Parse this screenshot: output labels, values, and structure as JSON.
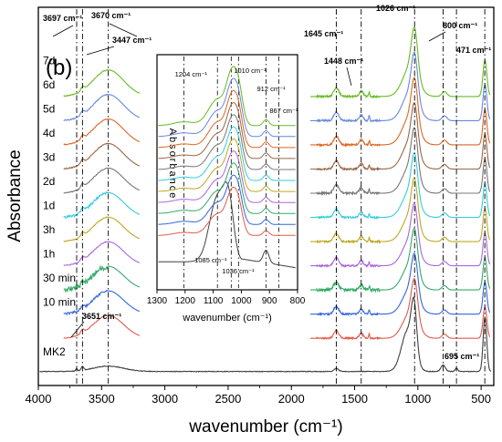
{
  "chart_data": {
    "type": "line",
    "panel_label": "(b)",
    "xlabel": "wavenumber (cm⁻¹)",
    "ylabel": "Absorbance",
    "xlim": [
      4000,
      400
    ],
    "x_reversed": true,
    "x_ticks": [
      4000,
      3500,
      3000,
      2500,
      2000,
      1500,
      1000,
      500
    ],
    "y_ticks_shown": false,
    "axis_break": {
      "from": 3200,
      "to": 1850,
      "note": "only MK2 spans the break"
    },
    "series": [
      {
        "name": "MK2",
        "label": "MK2",
        "color": "#404040",
        "offset": 0,
        "continuous": true
      },
      {
        "name": "10 min",
        "label": "10 min",
        "color": "#e05a4a",
        "offset": 1,
        "continuous": false
      },
      {
        "name": "30 min",
        "label": "30 min",
        "color": "#3366dd",
        "offset": 2,
        "continuous": false
      },
      {
        "name": "1h",
        "label": "1h",
        "color": "#33aa66",
        "offset": 3,
        "continuous": false
      },
      {
        "name": "3h",
        "label": "3h",
        "color": "#aa66dd",
        "offset": 4,
        "continuous": false
      },
      {
        "name": "1d",
        "label": "1d",
        "color": "#bbaa22",
        "offset": 5,
        "continuous": false
      },
      {
        "name": "2d",
        "label": "2d",
        "color": "#33ccdd",
        "offset": 6,
        "continuous": false
      },
      {
        "name": "3d",
        "label": "3d",
        "color": "#777777",
        "offset": 7,
        "continuous": false
      },
      {
        "name": "4d",
        "label": "4d",
        "color": "#996644",
        "offset": 8,
        "continuous": false
      },
      {
        "name": "5d",
        "label": "5d",
        "color": "#dd6622",
        "offset": 9,
        "continuous": false
      },
      {
        "name": "6d",
        "label": "6d",
        "color": "#6688dd",
        "offset": 10,
        "continuous": false
      },
      {
        "name": "7d",
        "label": "7d",
        "color": "#66bb22",
        "offset": 11,
        "continuous": false
      }
    ],
    "reference_lines": [
      3697,
      3651,
      3447,
      1645,
      1448,
      1026,
      800,
      695,
      471
    ],
    "annotations": [
      {
        "text": "3697 cm⁻¹",
        "x": 3697
      },
      {
        "text": "3670 cm⁻¹",
        "x": 3670
      },
      {
        "text": "3447 cm⁻¹",
        "x": 3447
      },
      {
        "text": "3651 cm⁻¹",
        "x": 3651
      },
      {
        "text": "1645 cm⁻¹",
        "x": 1645
      },
      {
        "text": "1448 cm⁻¹",
        "x": 1448
      },
      {
        "text": "1026 cm⁻¹",
        "x": 1026
      },
      {
        "text": "800 cm⁻¹",
        "x": 800
      },
      {
        "text": "471 cm⁻¹",
        "x": 471
      },
      {
        "text": "695 cm⁻¹",
        "x": 695
      }
    ],
    "inset": {
      "xlabel": "wavenumber (cm⁻¹)",
      "ylabel": "Absorbance",
      "xlim": [
        1300,
        800
      ],
      "x_ticks": [
        1300,
        1200,
        1100,
        1000,
        900,
        800
      ],
      "reference_lines": [
        1204,
        1085,
        1036,
        1010,
        912,
        867
      ],
      "annotations": [
        {
          "text": "1204 cm⁻¹",
          "x": 1204
        },
        {
          "text": "1010 cm⁻¹",
          "x": 1010
        },
        {
          "text": "912 cm⁻¹",
          "x": 912
        },
        {
          "text": "867 cm⁻¹",
          "x": 867
        },
        {
          "text": "1085 cm⁻¹",
          "x": 1085
        },
        {
          "text": "1036 cm⁻¹",
          "x": 1036
        }
      ]
    }
  }
}
